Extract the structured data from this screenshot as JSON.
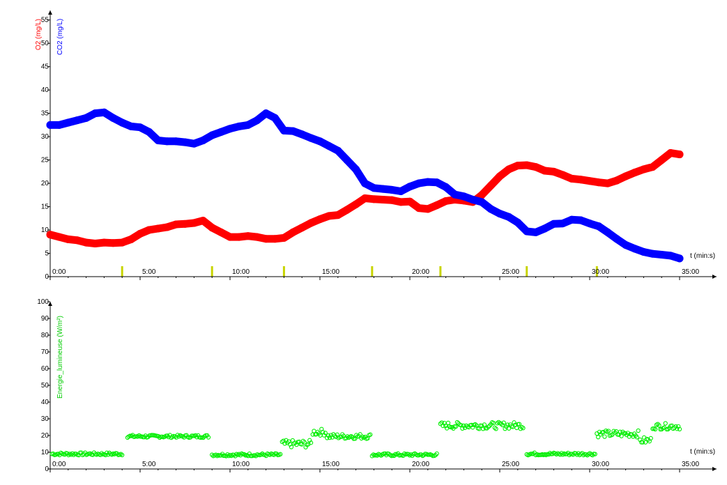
{
  "colors": {
    "o2": "#ff0000",
    "co2": "#0000ff",
    "energie": "#00ee00",
    "marker": "#c8d400",
    "axis": "#000000"
  },
  "chart_data": [
    {
      "type": "line",
      "ylabels": [
        "O2 (mg/L)",
        "CO2 (mg/L)"
      ],
      "xlabel": "t (min:s)",
      "xlim": [
        0,
        35
      ],
      "ylim": [
        0,
        56
      ],
      "xticks": [
        0,
        5,
        10,
        15,
        20,
        25,
        30,
        35
      ],
      "xtick_labels": [
        "0:00",
        "5:00",
        "10:00",
        "15:00",
        "20:00",
        "25:00",
        "30:00",
        "35:00"
      ],
      "yticks": [
        0,
        5,
        10,
        15,
        20,
        25,
        30,
        35,
        40,
        45,
        50,
        55
      ],
      "ytick_labels": [
        "0",
        "5",
        "10",
        "15",
        "20",
        "25",
        "30",
        "35",
        "40",
        "45",
        "50",
        "55"
      ],
      "event_markers": [
        4.0,
        9.0,
        13.0,
        17.9,
        21.7,
        26.5,
        30.4
      ],
      "series": [
        {
          "name": "O2",
          "color_key": "o2",
          "x": [
            0,
            0.5,
            1,
            1.5,
            2,
            2.5,
            3,
            3.5,
            4,
            4.5,
            5,
            5.5,
            6,
            6.5,
            7,
            7.5,
            8,
            8.5,
            9,
            9.5,
            10,
            10.5,
            11,
            11.5,
            12,
            12.5,
            13,
            13.5,
            14,
            14.5,
            15,
            15.5,
            16,
            16.5,
            17,
            17.5,
            18,
            18.5,
            19,
            19.5,
            20,
            20.5,
            21,
            21.5,
            22,
            22.5,
            23,
            23.5,
            24,
            24.5,
            25,
            25.5,
            26,
            26.5,
            27,
            27.5,
            28,
            28.5,
            29,
            29.5,
            30,
            30.5,
            31,
            31.5,
            32,
            32.5,
            33,
            33.5,
            34,
            34.5,
            35
          ],
          "y": [
            9,
            8.5,
            8,
            7.8,
            7.3,
            7.1,
            7.3,
            7.2,
            7.3,
            8,
            9.2,
            10,
            10.3,
            10.6,
            11.2,
            11.3,
            11.5,
            12,
            10.5,
            9.5,
            8.5,
            8.5,
            8.7,
            8.5,
            8.1,
            8.1,
            8.3,
            9.5,
            10.5,
            11.5,
            12.3,
            13,
            13.2,
            14.3,
            15.5,
            16.8,
            16.6,
            16.5,
            16.4,
            16,
            16.1,
            14.7,
            14.5,
            15.3,
            16.2,
            16.5,
            16.3,
            16,
            17.5,
            19.5,
            21.5,
            23,
            23.8,
            23.9,
            23.5,
            22.7,
            22.5,
            21.8,
            21,
            20.8,
            20.5,
            20.2,
            20,
            20.6,
            21.5,
            22.3,
            23,
            23.5,
            25,
            26.5,
            26.2
          ]
        },
        {
          "name": "CO2",
          "color_key": "co2",
          "x": [
            0,
            0.5,
            1,
            1.5,
            2,
            2.5,
            3,
            3.5,
            4,
            4.5,
            5,
            5.5,
            6,
            6.5,
            7,
            7.5,
            8,
            8.5,
            9,
            9.5,
            10,
            10.5,
            11,
            11.5,
            12,
            12.5,
            13,
            13.5,
            14,
            14.5,
            15,
            15.5,
            16,
            16.5,
            17,
            17.5,
            18,
            18.5,
            19,
            19.5,
            20,
            20.5,
            21,
            21.5,
            22,
            22.5,
            23,
            23.5,
            24,
            24.5,
            25,
            25.5,
            26,
            26.5,
            27,
            27.5,
            28,
            28.5,
            29,
            29.5,
            30,
            30.5,
            31,
            31.5,
            32,
            32.5,
            33,
            33.5,
            34,
            34.5,
            35
          ],
          "y": [
            32.5,
            32.5,
            33,
            33.5,
            34,
            35,
            35.2,
            34,
            33,
            32.2,
            32,
            31,
            29.2,
            29,
            29,
            28.8,
            28.5,
            29.2,
            30.3,
            31,
            31.7,
            32.2,
            32.5,
            33.5,
            35,
            34,
            31.3,
            31.2,
            30.5,
            29.7,
            29,
            28,
            27,
            25,
            23,
            20,
            19,
            18.8,
            18.6,
            18.3,
            19.3,
            20,
            20.3,
            20.2,
            19.2,
            17.6,
            17.2,
            16.5,
            16,
            14.5,
            13.5,
            12.8,
            11.6,
            9.7,
            9.5,
            10.3,
            11.3,
            11.4,
            12.2,
            12.1,
            11.4,
            10.8,
            9.5,
            8.1,
            6.8,
            6,
            5.3,
            4.9,
            4.7,
            4.5,
            3.9
          ]
        }
      ]
    },
    {
      "type": "scatter",
      "ylabel": "Energie_lumineuse (W/m²)",
      "xlabel": "t (min:s)",
      "xlim": [
        0,
        35
      ],
      "ylim": [
        0,
        100
      ],
      "xticks": [
        0,
        5,
        10,
        15,
        20,
        25,
        30,
        35
      ],
      "xtick_labels": [
        "0:00",
        "5:00",
        "10:00",
        "15:00",
        "20:00",
        "25:00",
        "30:00",
        "35:00"
      ],
      "yticks": [
        0,
        10,
        20,
        30,
        40,
        50,
        60,
        70,
        80,
        90,
        100
      ],
      "ytick_labels": [
        "0",
        "10",
        "20",
        "30",
        "40",
        "50",
        "60",
        "70",
        "80",
        "90",
        "100"
      ],
      "series": [
        {
          "name": "Energie_lumineuse",
          "color_key": "energie",
          "segments": [
            {
              "x_start": 0.1,
              "x_end": 4.0,
              "y": 9,
              "noise": 0.8
            },
            {
              "x_start": 4.3,
              "x_end": 8.8,
              "y": 19.5,
              "noise": 0.8
            },
            {
              "x_start": 9.0,
              "x_end": 12.8,
              "y": 8.5,
              "noise": 0.8
            },
            {
              "x_start": 12.9,
              "x_end": 14.5,
              "y": 15,
              "noise": 2.2
            },
            {
              "x_start": 14.6,
              "x_end": 15.3,
              "y": 22,
              "noise": 2.0
            },
            {
              "x_start": 15.4,
              "x_end": 17.8,
              "y": 19.5,
              "noise": 1.5
            },
            {
              "x_start": 17.9,
              "x_end": 21.5,
              "y": 8.5,
              "noise": 0.8
            },
            {
              "x_start": 21.7,
              "x_end": 26.3,
              "y": 26,
              "noise": 2.0
            },
            {
              "x_start": 26.5,
              "x_end": 30.3,
              "y": 9,
              "noise": 0.8
            },
            {
              "x_start": 30.4,
              "x_end": 32.7,
              "y": 21,
              "noise": 2.0
            },
            {
              "x_start": 32.8,
              "x_end": 33.4,
              "y": 17,
              "noise": 2.0
            },
            {
              "x_start": 33.5,
              "x_end": 35.0,
              "y": 25.5,
              "noise": 1.8
            }
          ]
        }
      ]
    }
  ]
}
